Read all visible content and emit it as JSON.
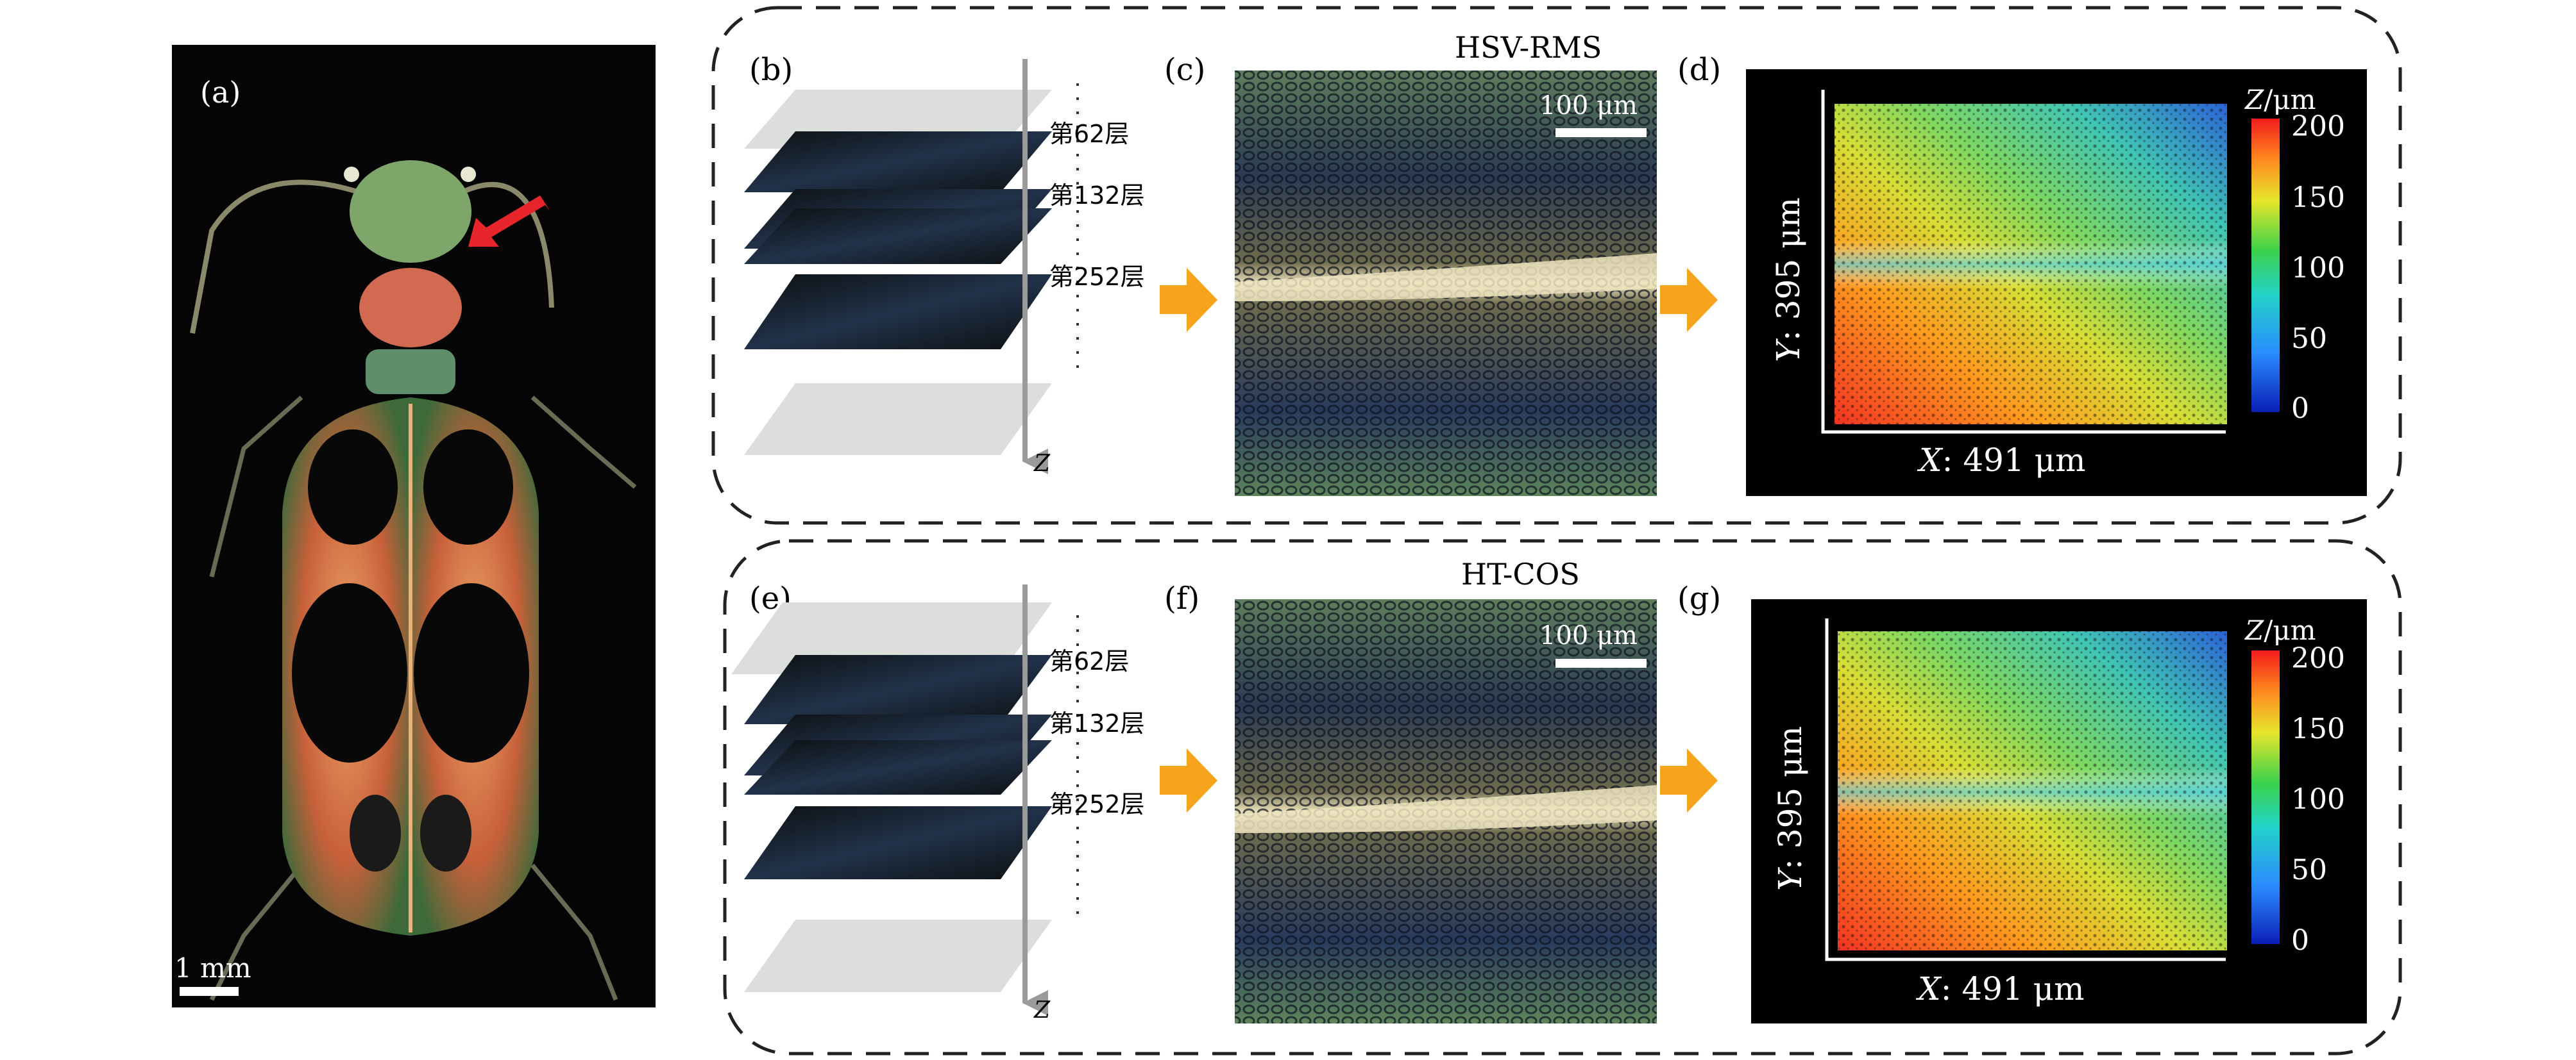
{
  "figure": {
    "panel_a": {
      "label": "(a)",
      "scale_bar": "1 mm"
    },
    "top_row": {
      "method": "HSV-RMS",
      "stack": {
        "label": "(b)",
        "layers": [
          "第62层",
          "第132层",
          "第252层"
        ],
        "axis": "Z"
      },
      "image": {
        "label": "(c)",
        "scale_bar": "100 μm"
      },
      "height_map": {
        "label": "(d)",
        "x_axis": {
          "var": "X",
          "value": ": 491 μm"
        },
        "y_axis": {
          "var": "Y",
          "value": ": 395 μm"
        },
        "colorbar": {
          "var": "Z",
          "unit": "/μm",
          "ticks": [
            "200",
            "150",
            "100",
            "50",
            "0"
          ]
        }
      }
    },
    "bottom_row": {
      "method": "HT-COS",
      "stack": {
        "label": "(e)",
        "layers": [
          "第62层",
          "第132层",
          "第252层"
        ],
        "axis": "Z"
      },
      "image": {
        "label": "(f)",
        "scale_bar": "100 μm"
      },
      "height_map": {
        "label": "(g)",
        "x_axis": {
          "var": "X",
          "value": ": 491 μm"
        },
        "y_axis": {
          "var": "Y",
          "value": ": 395 μm"
        },
        "colorbar": {
          "var": "Z",
          "unit": "/μm",
          "ticks": [
            "200",
            "150",
            "100",
            "50",
            "0"
          ]
        }
      }
    },
    "colors": {
      "arrow_orange": "#f7a41d",
      "red_arrow": "#e8252b",
      "layer_gray": "#dcdedb",
      "axis_gray": "#9a9a9a"
    }
  }
}
